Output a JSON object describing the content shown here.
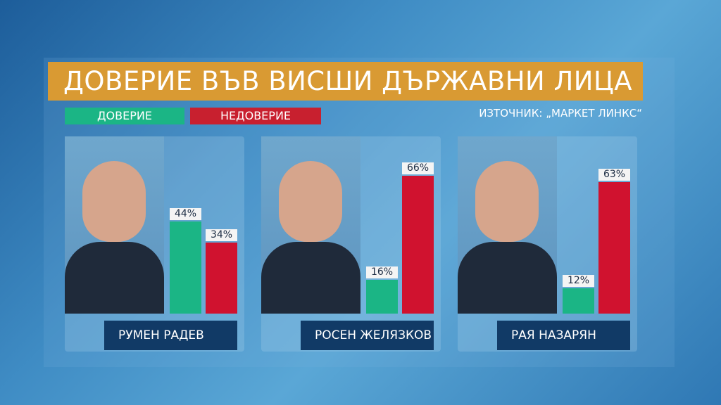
{
  "title": "ДОВЕРИЕ ВЪВ ВИСШИ ДЪРЖАВНИ ЛИЦА",
  "source": "ИЗТОЧНИК: „МАРКЕТ ЛИНКС“",
  "chart_data": {
    "type": "bar",
    "title": "ДОВЕРИЕ ВЪВ ВИСШИ ДЪРЖАВНИ ЛИЦА",
    "categories": [
      "РУМЕН РАДЕВ",
      "РОСЕН ЖЕЛЯЗКОВ",
      "РАЯ НАЗАРЯН"
    ],
    "series": [
      {
        "name": "ДОВЕРИЕ",
        "color": "#1bb585",
        "values": [
          44,
          16,
          12
        ]
      },
      {
        "name": "НЕДОВЕРИЕ",
        "color": "#d0122f",
        "values": [
          34,
          66,
          63
        ]
      }
    ],
    "value_labels": [
      [
        "44%",
        "34%"
      ],
      [
        "16%",
        "66%"
      ],
      [
        "12%",
        "63%"
      ]
    ],
    "legend": "top-left",
    "grid": false
  }
}
